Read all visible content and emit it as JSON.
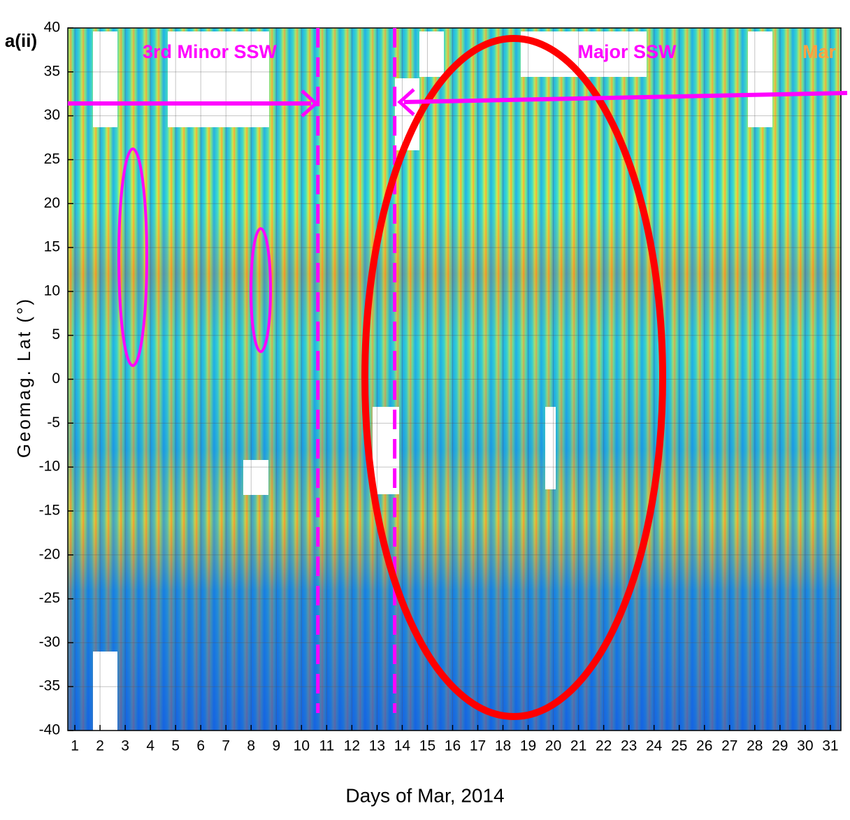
{
  "chart_data": {
    "type": "heatmap",
    "panel_label": "a(ii)",
    "x_label": "Days of Mar, 2014",
    "y_label": "Geomag. Lat (°)",
    "xlim": [
      0.72,
      31.42
    ],
    "xticks": [
      1,
      2,
      3,
      4,
      5,
      6,
      7,
      8,
      9,
      10,
      11,
      12,
      13,
      14,
      15,
      16,
      17,
      18,
      19,
      20,
      21,
      22,
      23,
      24,
      25,
      26,
      27,
      28,
      29,
      30,
      31
    ],
    "ylim": [
      -40,
      40
    ],
    "yticks": [
      -40,
      -35,
      -30,
      -25,
      -20,
      -15,
      -10,
      -5,
      0,
      5,
      10,
      15,
      20,
      25,
      30,
      35,
      40
    ],
    "grid": true,
    "event_lines": [
      10.65,
      13.7
    ],
    "event_line_color": "#ff00ff",
    "annotations": [
      "3rd Minor SSW",
      "Major SSW",
      "Mar"
    ]
  }
}
